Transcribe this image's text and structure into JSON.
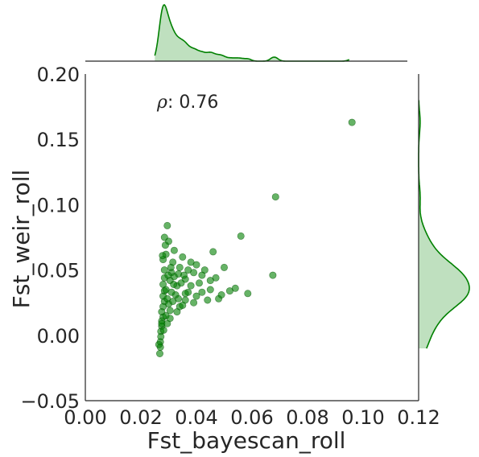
{
  "chart_data": {
    "type": "scatter",
    "title": "",
    "xlabel": "Fst_bayescan_roll",
    "ylabel": "Fst_weir_roll",
    "xlim": [
      0.0,
      0.12
    ],
    "ylim": [
      -0.05,
      0.2
    ],
    "x_ticks": [
      "0.00",
      "0.02",
      "0.04",
      "0.06",
      "0.08",
      "0.10",
      "0.12"
    ],
    "y_ticks": [
      "−0.05",
      "0.00",
      "0.05",
      "0.10",
      "0.15",
      "0.20"
    ],
    "grid": false,
    "annotation": {
      "symbol": "ρ",
      "text": ": 0.76",
      "value": 0.76
    },
    "marginals": {
      "top": "kde",
      "right": "kde"
    },
    "colors": {
      "points": "#008000",
      "kde_line": "#008000",
      "kde_fill": "#bfe0bf",
      "axis": "#262626"
    },
    "series": [
      {
        "points": [
          [
            0.096,
            0.163
          ],
          [
            0.0685,
            0.106
          ],
          [
            0.0675,
            0.046
          ],
          [
            0.056,
            0.076
          ],
          [
            0.0585,
            0.032
          ],
          [
            0.054,
            0.036
          ],
          [
            0.05,
            0.052
          ],
          [
            0.052,
            0.034
          ],
          [
            0.048,
            0.028
          ],
          [
            0.046,
            0.064
          ],
          [
            0.047,
            0.044
          ],
          [
            0.045,
            0.035
          ],
          [
            0.044,
            0.027
          ],
          [
            0.043,
            0.05
          ],
          [
            0.041,
            0.04
          ],
          [
            0.04,
            0.03
          ],
          [
            0.039,
            0.048
          ],
          [
            0.038,
            0.056
          ],
          [
            0.039,
            0.025
          ],
          [
            0.037,
            0.033
          ],
          [
            0.036,
            0.043
          ],
          [
            0.035,
            0.06
          ],
          [
            0.036,
            0.027
          ],
          [
            0.034,
            0.052
          ],
          [
            0.034,
            0.022
          ],
          [
            0.033,
            0.038
          ],
          [
            0.032,
            0.065
          ],
          [
            0.0325,
            0.031
          ],
          [
            0.031,
            0.048
          ],
          [
            0.0305,
            0.019
          ],
          [
            0.0295,
            0.084
          ],
          [
            0.03,
            0.072
          ],
          [
            0.0285,
            0.075
          ],
          [
            0.029,
            0.062
          ],
          [
            0.028,
            0.058
          ],
          [
            0.0285,
            0.05
          ],
          [
            0.0285,
            0.044
          ],
          [
            0.028,
            0.039
          ],
          [
            0.0285,
            0.034
          ],
          [
            0.028,
            0.03
          ],
          [
            0.0285,
            0.026
          ],
          [
            0.028,
            0.022
          ],
          [
            0.0275,
            0.018
          ],
          [
            0.028,
            0.014
          ],
          [
            0.0275,
            0.011
          ],
          [
            0.0275,
            0.007
          ],
          [
            0.0272,
            0.003
          ],
          [
            0.0272,
            -0.001
          ],
          [
            0.027,
            -0.005
          ],
          [
            0.027,
            -0.009
          ],
          [
            0.0268,
            -0.014
          ],
          [
            0.0265,
            -0.007
          ],
          [
            0.0275,
            0.009
          ],
          [
            0.029,
            0.035
          ],
          [
            0.0295,
            0.028
          ],
          [
            0.03,
            0.024
          ],
          [
            0.0305,
            0.042
          ],
          [
            0.031,
            0.033
          ],
          [
            0.0315,
            0.056
          ],
          [
            0.032,
            0.045
          ],
          [
            0.0335,
            0.028
          ],
          [
            0.0345,
            0.04
          ],
          [
            0.0355,
            0.046
          ],
          [
            0.037,
            0.05
          ],
          [
            0.038,
            0.038
          ],
          [
            0.04,
            0.054
          ],
          [
            0.042,
            0.033
          ],
          [
            0.029,
            0.015
          ],
          [
            0.0282,
            0.004
          ],
          [
            0.0295,
            0.009
          ],
          [
            0.0305,
            0.013
          ],
          [
            0.033,
            0.018
          ],
          [
            0.035,
            0.023
          ],
          [
            0.0315,
            0.026
          ],
          [
            0.0298,
            0.046
          ],
          [
            0.0308,
            0.052
          ],
          [
            0.0318,
            0.039
          ],
          [
            0.0278,
            0.061
          ],
          [
            0.0288,
            0.069
          ],
          [
            0.0335,
            0.047
          ],
          [
            0.036,
            0.032
          ],
          [
            0.042,
            0.046
          ],
          [
            0.045,
            0.042
          ],
          [
            0.049,
            0.031
          ]
        ]
      }
    ]
  }
}
